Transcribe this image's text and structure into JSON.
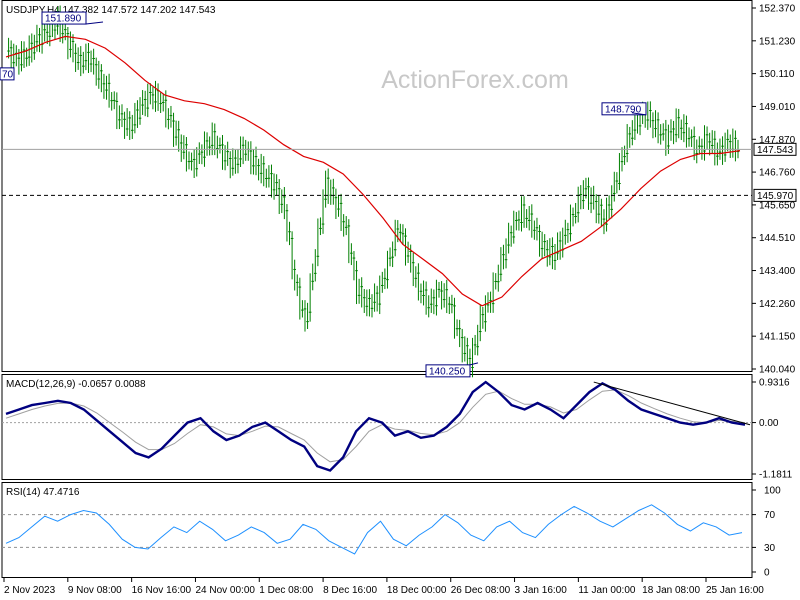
{
  "watermark": "ActionForex.com",
  "chart_data": [
    {
      "type": "candlestick",
      "header": "USDJPY,H4  147.382 147.572 147.202 147.543",
      "y_ticks": [
        "152.370",
        "151.230",
        "150.110",
        "149.010",
        "147.870",
        "146.760",
        "145.650",
        "144.510",
        "143.400",
        "142.260",
        "141.150",
        "140.040"
      ],
      "ylim": [
        140.04,
        152.37
      ],
      "x_labels": [
        "2 Nov 2023",
        "9 Nov 08:00",
        "16 Nov 16:00",
        "24 Nov 00:00",
        "1 Dec 08:00",
        "8 Dec 16:00",
        "18 Dec 00:00",
        "26 Dec 08:00",
        "3 Jan 16:00",
        "11 Jan 00:00",
        "18 Jan 08:00",
        "25 Jan 16:00"
      ],
      "price_path": [
        150.9,
        150.6,
        150.8,
        151.3,
        151.6,
        151.9,
        151.2,
        150.5,
        150.7,
        150.0,
        149.4,
        148.6,
        148.3,
        149.0,
        149.4,
        149.2,
        148.4,
        147.6,
        147.0,
        147.5,
        147.9,
        147.4,
        147.0,
        147.6,
        147.1,
        146.7,
        146.3,
        145.5,
        143.0,
        141.6,
        144.0,
        146.4,
        145.7,
        144.7,
        142.8,
        142.2,
        142.5,
        143.6,
        144.9,
        143.9,
        142.8,
        142.2,
        142.7,
        142.3,
        141.0,
        140.25,
        141.7,
        142.5,
        143.7,
        144.8,
        145.4,
        145.0,
        144.2,
        143.9,
        144.5,
        145.3,
        146.2,
        145.7,
        145.1,
        146.3,
        147.6,
        148.5,
        148.79,
        148.3,
        147.9,
        148.4,
        148.1,
        147.5,
        147.9,
        147.4,
        147.8,
        147.54
      ],
      "ma_path": [
        150.7,
        150.9,
        151.2,
        151.4,
        151.3,
        151.0,
        150.5,
        149.9,
        149.4,
        149.2,
        149.1,
        148.9,
        148.6,
        148.2,
        147.7,
        147.3,
        147.1,
        146.7,
        146.0,
        145.2,
        144.3,
        143.8,
        143.3,
        142.6,
        142.2,
        142.5,
        143.2,
        143.8,
        144.1,
        144.4,
        144.9,
        145.5,
        146.2,
        146.8,
        147.2,
        147.4,
        147.4,
        147.5
      ],
      "last_price": 147.543,
      "current_price_label": "147.543",
      "support_level": 145.97,
      "support_label": "145.970",
      "left_edge_label": "70",
      "annotations": [
        {
          "label": "151.890",
          "value": 151.89
        },
        {
          "label": "148.790",
          "value": 148.79
        },
        {
          "label": "140.250",
          "value": 140.25
        }
      ],
      "colors": {
        "candles": "#008000",
        "ma": "#dd0000",
        "support": "#000000"
      }
    },
    {
      "type": "line",
      "header": "MACD(12,26,9) -0.0657 0.0088",
      "y_ticks": [
        "0.9316",
        "0.00",
        "-1.1811"
      ],
      "ylim": [
        -1.1811,
        0.9316
      ],
      "macd": [
        0.2,
        0.3,
        0.4,
        0.45,
        0.5,
        0.45,
        0.3,
        0.05,
        -0.2,
        -0.45,
        -0.7,
        -0.8,
        -0.6,
        -0.3,
        0.0,
        0.1,
        -0.2,
        -0.4,
        -0.3,
        -0.1,
        0.0,
        -0.2,
        -0.4,
        -0.55,
        -1.0,
        -1.1,
        -0.8,
        -0.2,
        0.1,
        0.0,
        -0.3,
        -0.2,
        -0.35,
        -0.3,
        -0.1,
        0.2,
        0.7,
        0.93,
        0.7,
        0.4,
        0.3,
        0.45,
        0.3,
        0.1,
        0.4,
        0.7,
        0.9,
        0.75,
        0.5,
        0.3,
        0.2,
        0.1,
        0.0,
        -0.05,
        0.0,
        0.1,
        0.0,
        -0.05
      ],
      "signal": [
        0.1,
        0.2,
        0.3,
        0.38,
        0.44,
        0.45,
        0.38,
        0.22,
        0.0,
        -0.22,
        -0.45,
        -0.62,
        -0.62,
        -0.48,
        -0.25,
        -0.05,
        -0.1,
        -0.26,
        -0.3,
        -0.2,
        -0.08,
        -0.1,
        -0.25,
        -0.4,
        -0.7,
        -0.9,
        -0.85,
        -0.55,
        -0.2,
        -0.05,
        -0.15,
        -0.18,
        -0.25,
        -0.28,
        -0.2,
        0.0,
        0.35,
        0.65,
        0.72,
        0.55,
        0.42,
        0.42,
        0.36,
        0.22,
        0.3,
        0.52,
        0.72,
        0.75,
        0.62,
        0.45,
        0.32,
        0.2,
        0.1,
        0.02,
        0.0,
        0.05,
        0.03,
        0.0
      ],
      "trendline": [
        [
          0.79,
          0.93
        ],
        [
          1.0,
          -0.05
        ]
      ],
      "colors": {
        "macd": "#000080",
        "signal": "#a0a0a0",
        "trendline": "#000000"
      }
    },
    {
      "type": "line",
      "header": "RSI(14) 47.4716",
      "y_ticks": [
        "100",
        "70",
        "30",
        "0"
      ],
      "ylim": [
        0,
        100
      ],
      "levels": [
        70,
        30
      ],
      "rsi": [
        35,
        42,
        55,
        68,
        62,
        70,
        75,
        72,
        58,
        40,
        30,
        28,
        42,
        55,
        48,
        62,
        52,
        38,
        45,
        55,
        48,
        35,
        40,
        58,
        52,
        38,
        30,
        22,
        48,
        62,
        40,
        32,
        45,
        55,
        70,
        60,
        45,
        38,
        55,
        62,
        48,
        42,
        58,
        70,
        80,
        72,
        62,
        55,
        65,
        75,
        82,
        72,
        58,
        50,
        60,
        55,
        45,
        48
      ],
      "colors": {
        "rsi": "#1e90ff",
        "levels": "#909090"
      }
    }
  ]
}
